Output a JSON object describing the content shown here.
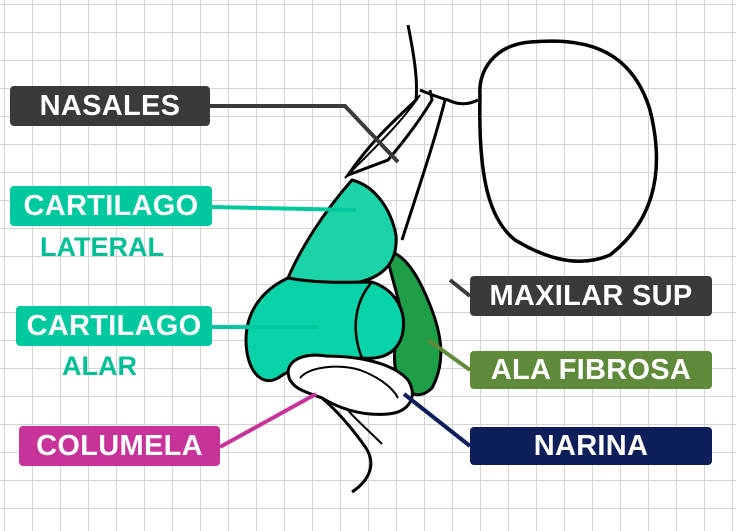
{
  "labels": {
    "nasales": "NASALES",
    "cartilago_lateral_1": "CARTILAGO",
    "cartilago_lateral_2": "LATERAL",
    "cartilago_alar_1": "CARTILAGO",
    "cartilago_alar_2": "ALAR",
    "columela": "COLUMELA",
    "maxilar_sup": "MAXILAR SUP",
    "ala_fibrosa": "ALA FIBROSA",
    "narina": "NARINA"
  },
  "colors": {
    "nasales": "#3a3a3a",
    "cartilago": "#00c9a0",
    "cartilago_text": "#00bf96",
    "cartilago_lateral_fill": "#1bd3a6",
    "cartilago_alar_fill": "#08d3a8",
    "ala_fibrosa_fill": "#1f9e48",
    "ala_fibrosa_label": "#5e8a3a",
    "columela": "#c8339a",
    "maxilar_sup": "#3a3a3a",
    "narina": "#0c1f5a",
    "grid": "#d4d4d4"
  }
}
